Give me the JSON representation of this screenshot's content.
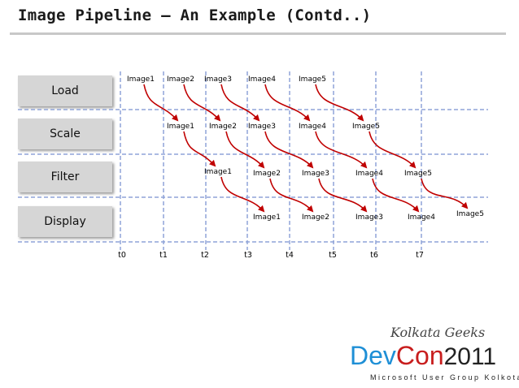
{
  "title": "Image Pipeline – An Example (Contd..)",
  "stages": [
    "Load",
    "Scale",
    "Filter",
    "Display"
  ],
  "time_labels": [
    "t0",
    "t1",
    "t2",
    "t3",
    "t4",
    "t5",
    "t6",
    "t7"
  ],
  "rows": {
    "load": [
      "Image1",
      "Image2",
      "Image3",
      "Image4",
      "Image5"
    ],
    "scale": [
      "Image1",
      "Image2",
      "Image3",
      "Image4",
      "Image5"
    ],
    "filter": [
      "Image1",
      "Image2",
      "Image3",
      "Image4",
      "Image5"
    ],
    "display": [
      "Image1",
      "Image2",
      "Image3",
      "Image4",
      "Image5"
    ]
  },
  "branding": {
    "community": "Kolkata Geeks",
    "logo_dev": "Dev",
    "logo_con": "Con",
    "logo_year": "2011",
    "org": "Microsoft User Group Kolkota"
  },
  "colors": {
    "arrow": "#c00000",
    "grid": "#8fa3d8",
    "stage_box": "#d6d6d6"
  }
}
